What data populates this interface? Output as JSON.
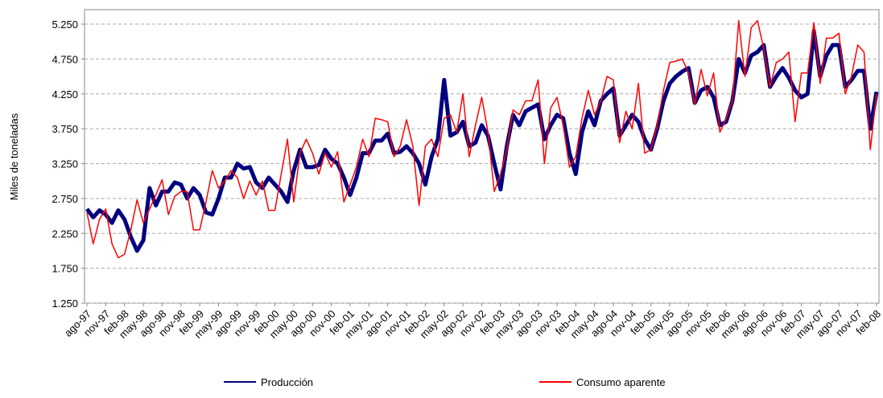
{
  "chart_data": {
    "type": "line",
    "y_label": "Miles de toneladas",
    "categories": [
      "ago-97",
      null,
      null,
      "nov-97",
      null,
      null,
      "feb-98",
      null,
      null,
      "may-98",
      null,
      null,
      "ago-98",
      null,
      null,
      "nov-98",
      null,
      null,
      "feb-99",
      null,
      null,
      "may-99",
      null,
      null,
      "ago-99",
      null,
      null,
      "nov-99",
      null,
      null,
      "feb-00",
      null,
      null,
      "may-00",
      null,
      null,
      "ago-00",
      null,
      null,
      "nov-00",
      null,
      null,
      "feb-01",
      null,
      null,
      "may-01",
      null,
      null,
      "ago-01",
      null,
      null,
      "nov-01",
      null,
      null,
      "feb-02",
      null,
      null,
      "may-02",
      null,
      null,
      "ago-02",
      null,
      null,
      "nov-02",
      null,
      null,
      "feb-03",
      null,
      null,
      "may-03",
      null,
      null,
      "ago-03",
      null,
      null,
      "nov-03",
      null,
      null,
      "feb-04",
      null,
      null,
      "may-04",
      null,
      null,
      "ago-04",
      null,
      null,
      "nov-04",
      null,
      null,
      "feb-05",
      null,
      null,
      "may-05",
      null,
      null,
      "ago-05",
      null,
      null,
      "nov-05",
      null,
      null,
      "feb-06",
      null,
      null,
      "may-06",
      null,
      null,
      "ago-06",
      null,
      null,
      "nov-06",
      null,
      null,
      "feb-07",
      null,
      null,
      "may-07",
      null,
      null,
      "ago-07",
      null,
      null,
      "nov-07",
      null,
      null,
      "feb-08"
    ],
    "series": [
      {
        "name": "Producción",
        "color": "#000080",
        "width": 5,
        "values": [
          2600,
          2480,
          2580,
          2520,
          2400,
          2580,
          2450,
          2200,
          2000,
          2150,
          2900,
          2650,
          2850,
          2850,
          2980,
          2950,
          2750,
          2900,
          2800,
          2550,
          2520,
          2750,
          3050,
          3050,
          3250,
          3180,
          3200,
          2980,
          2900,
          3050,
          2950,
          2850,
          2700,
          3150,
          3450,
          3200,
          3200,
          3230,
          3450,
          3320,
          3250,
          3050,
          2800,
          3050,
          3400,
          3400,
          3580,
          3580,
          3680,
          3400,
          3420,
          3500,
          3400,
          3250,
          2950,
          3350,
          3600,
          4450,
          3650,
          3700,
          3850,
          3500,
          3550,
          3800,
          3650,
          3250,
          2880,
          3500,
          3950,
          3800,
          4000,
          4050,
          4100,
          3600,
          3800,
          3950,
          3900,
          3400,
          3100,
          3700,
          4000,
          3800,
          4150,
          4250,
          4330,
          3650,
          3800,
          3950,
          3850,
          3600,
          3450,
          3750,
          4150,
          4400,
          4500,
          4570,
          4620,
          4120,
          4300,
          4350,
          4200,
          3800,
          3850,
          4150,
          4750,
          4550,
          4800,
          4850,
          4950,
          4350,
          4500,
          4620,
          4480,
          4300,
          4200,
          4250,
          5150,
          4500,
          4800,
          4950,
          4950,
          4350,
          4450,
          4580,
          4580,
          3750,
          4280
        ]
      },
      {
        "name": "Consumo aparente",
        "color": "#ff0000",
        "width": 1.5,
        "values": [
          2550,
          2100,
          2450,
          2600,
          2100,
          1900,
          1950,
          2300,
          2730,
          2400,
          2600,
          2800,
          3020,
          2520,
          2780,
          2850,
          2850,
          2300,
          2300,
          2700,
          3150,
          2900,
          3000,
          3150,
          3050,
          2750,
          3000,
          2800,
          3000,
          2580,
          2580,
          3100,
          3600,
          2700,
          3400,
          3600,
          3400,
          3100,
          3400,
          3200,
          3420,
          2700,
          2950,
          3200,
          3600,
          3350,
          3900,
          3880,
          3850,
          3350,
          3500,
          3880,
          3500,
          2650,
          3500,
          3600,
          3350,
          3900,
          3950,
          3700,
          4250,
          3350,
          3800,
          4200,
          3700,
          2850,
          3100,
          3450,
          4020,
          3950,
          4150,
          4150,
          4450,
          3250,
          4050,
          4200,
          3800,
          3200,
          3350,
          3900,
          4300,
          3950,
          4150,
          4500,
          4450,
          3550,
          4000,
          3750,
          4400,
          3400,
          3450,
          3800,
          4300,
          4700,
          4720,
          4750,
          4550,
          4100,
          4600,
          4220,
          4550,
          3700,
          3900,
          4150,
          5300,
          4500,
          5200,
          5300,
          4900,
          4350,
          4700,
          4750,
          4850,
          3850,
          4550,
          4550,
          5270,
          4400,
          5050,
          5050,
          5120,
          4250,
          4500,
          4950,
          4850,
          3450,
          4250
        ]
      }
    ],
    "ylim": [
      1250,
      5250
    ],
    "yticks": [
      {
        "value": 1250,
        "label": "1.250"
      },
      {
        "value": 1750,
        "label": "1.750"
      },
      {
        "value": 2250,
        "label": "2.250"
      },
      {
        "value": 2750,
        "label": "2.750"
      },
      {
        "value": 3250,
        "label": "3.250"
      },
      {
        "value": 3750,
        "label": "3.750"
      },
      {
        "value": 4250,
        "label": "4.250"
      },
      {
        "value": 4750,
        "label": "4.750"
      },
      {
        "value": 5250,
        "label": "5.250"
      }
    ],
    "grid": true,
    "legend": "bottom"
  }
}
